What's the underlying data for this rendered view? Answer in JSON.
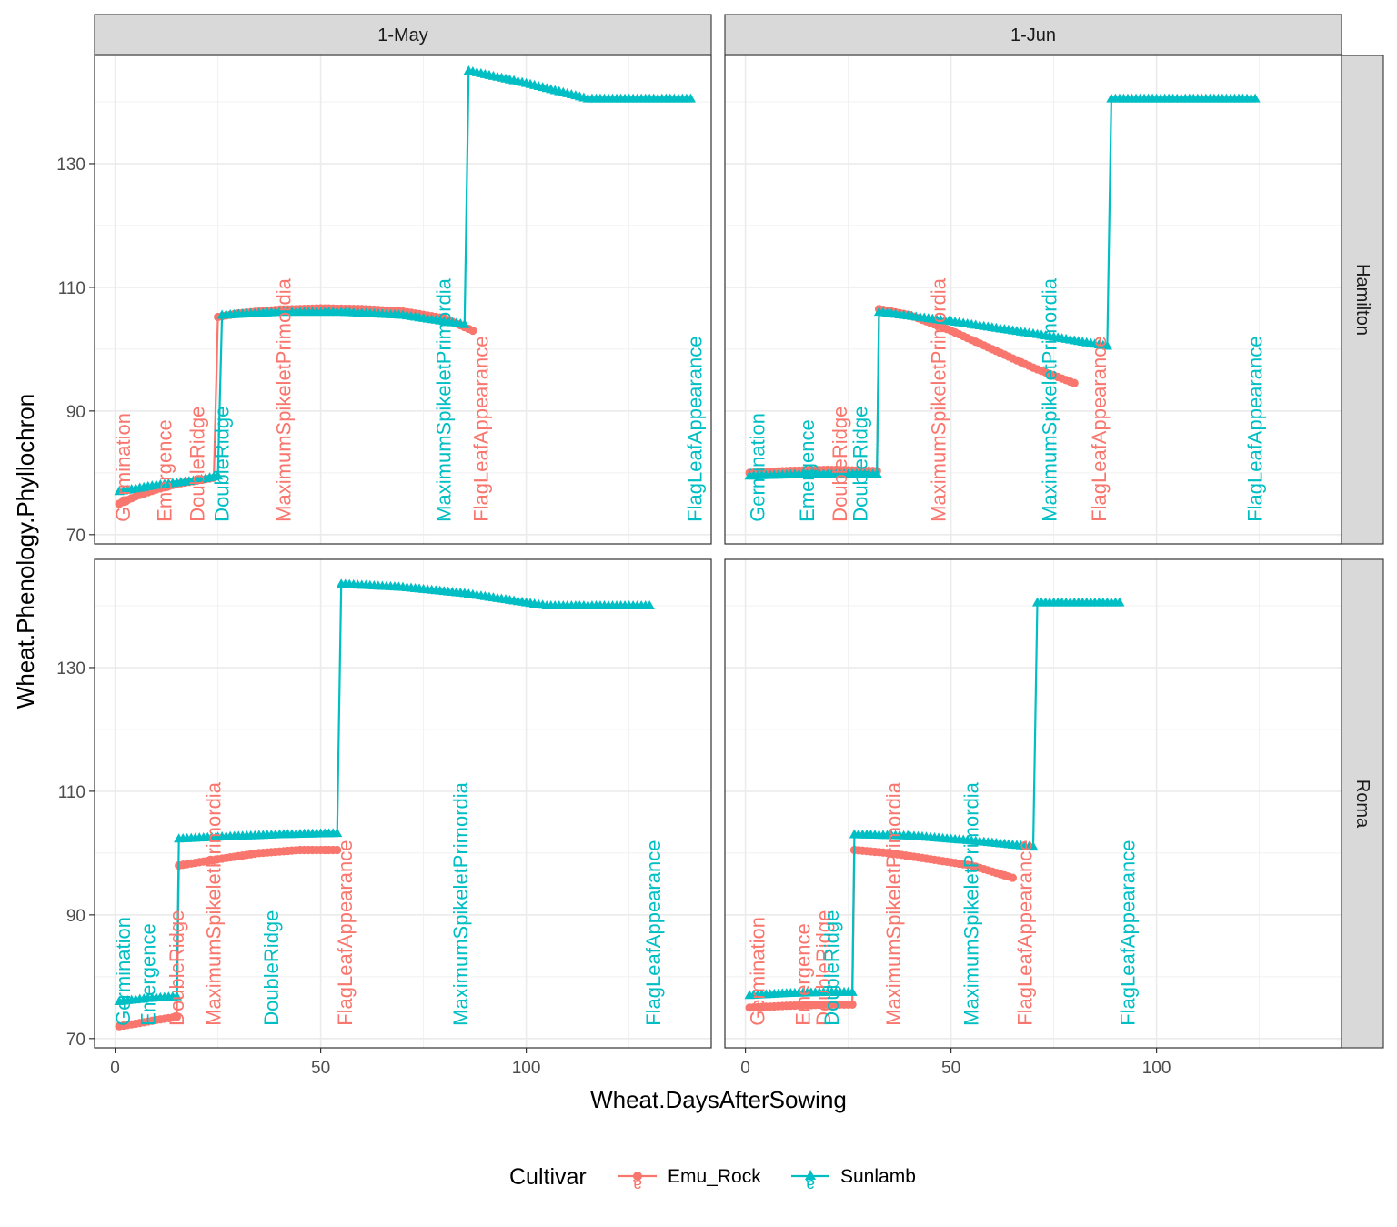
{
  "chart_data": {
    "type": "line",
    "facet_cols": [
      "1-May",
      "1-Jun"
    ],
    "facet_rows": [
      "Hamilton",
      "Roma"
    ],
    "xlabel": "Wheat.DaysAfterSowing",
    "ylabel": "Wheat.Phenology.Phyllochron",
    "xlim": [
      -5,
      145
    ],
    "ylim": [
      68.5,
      147.5
    ],
    "xticks": [
      0,
      50,
      100
    ],
    "yticks": [
      70,
      90,
      110,
      130
    ],
    "legend": {
      "title": "Cultivar",
      "position": "bottom",
      "keys": [
        {
          "name": "Emu_Rock",
          "color": "#F8766D",
          "marker": "circle",
          "glyph": "a"
        },
        {
          "name": "Sunlamb",
          "color": "#00BFC4",
          "marker": "triangle",
          "glyph": "a"
        }
      ]
    },
    "panels": [
      {
        "sow": "1-May",
        "site": "Hamilton",
        "series": [
          {
            "name": "Emu_Rock",
            "points": [
              [
                1,
                75
              ],
              [
                5,
                76.2
              ],
              [
                10,
                77.3
              ],
              [
                15,
                78.2
              ],
              [
                24,
                79.2
              ],
              [
                25,
                105.2
              ],
              [
                30,
                105.8
              ],
              [
                40,
                106.4
              ],
              [
                50,
                106.6
              ],
              [
                60,
                106.5
              ],
              [
                70,
                106.1
              ],
              [
                80,
                105
              ],
              [
                87,
                103
              ]
            ]
          },
          {
            "name": "Sunlamb",
            "points": [
              [
                1,
                77
              ],
              [
                10,
                78
              ],
              [
                20,
                78.8
              ],
              [
                25,
                79.5
              ],
              [
                26,
                105.5
              ],
              [
                40,
                106
              ],
              [
                55,
                106
              ],
              [
                70,
                105.5
              ],
              [
                85,
                104
              ],
              [
                86,
                145
              ],
              [
                100,
                143
              ],
              [
                115,
                140.5
              ],
              [
                140,
                140.5
              ]
            ]
          }
        ],
        "annotations": [
          {
            "label": "Germination",
            "x": 2,
            "cultivar": "Emu_Rock"
          },
          {
            "label": "Emergence",
            "x": 12,
            "cultivar": "Emu_Rock"
          },
          {
            "label": "DoubleRidge",
            "x": 20,
            "cultivar": "Emu_Rock"
          },
          {
            "label": "DoubleRidge",
            "x": 26,
            "cultivar": "Sunlamb"
          },
          {
            "label": "MaximumSpikeletPrimordia",
            "x": 41,
            "cultivar": "Emu_Rock"
          },
          {
            "label": "MaximumSpikeletPrimordia",
            "x": 80,
            "cultivar": "Sunlamb"
          },
          {
            "label": "FlagLeafAppearance",
            "x": 89,
            "cultivar": "Emu_Rock"
          },
          {
            "label": "FlagLeafAppearance",
            "x": 141,
            "cultivar": "Sunlamb"
          }
        ]
      },
      {
        "sow": "1-Jun",
        "site": "Hamilton",
        "series": [
          {
            "name": "Emu_Rock",
            "points": [
              [
                1,
                80
              ],
              [
                10,
                80.3
              ],
              [
                20,
                80.5
              ],
              [
                32,
                80.3
              ],
              [
                32.5,
                106.5
              ],
              [
                40,
                105.5
              ],
              [
                50,
                103
              ],
              [
                60,
                100
              ],
              [
                70,
                97
              ],
              [
                80,
                94.5
              ]
            ]
          },
          {
            "name": "Sunlamb",
            "points": [
              [
                1,
                79.5
              ],
              [
                15,
                79.8
              ],
              [
                32,
                79.8
              ],
              [
                32.5,
                106
              ],
              [
                50,
                104.5
              ],
              [
                70,
                102.5
              ],
              [
                88,
                100.5
              ],
              [
                89,
                140.5
              ],
              [
                105,
                140.5
              ],
              [
                124,
                140.5
              ]
            ]
          }
        ],
        "annotations": [
          {
            "label": "Germination",
            "x": 3,
            "cultivar": "Sunlamb"
          },
          {
            "label": "Emergence",
            "x": 15,
            "cultivar": "Sunlamb"
          },
          {
            "label": "DoubleRidge",
            "x": 23,
            "cultivar": "Emu_Rock"
          },
          {
            "label": "DoubleRidge",
            "x": 28,
            "cultivar": "Sunlamb"
          },
          {
            "label": "MaximumSpikeletPrimordia",
            "x": 47,
            "cultivar": "Emu_Rock"
          },
          {
            "label": "MaximumSpikeletPrimordia",
            "x": 74,
            "cultivar": "Sunlamb"
          },
          {
            "label": "FlagLeafAppearance",
            "x": 86,
            "cultivar": "Emu_Rock"
          },
          {
            "label": "FlagLeafAppearance",
            "x": 124,
            "cultivar": "Sunlamb"
          }
        ]
      },
      {
        "sow": "1-May",
        "site": "Roma",
        "series": [
          {
            "name": "Emu_Rock",
            "points": [
              [
                1,
                72
              ],
              [
                5,
                72.4
              ],
              [
                10,
                73
              ],
              [
                15,
                73.5
              ],
              [
                15.5,
                98
              ],
              [
                25,
                99
              ],
              [
                35,
                100
              ],
              [
                45,
                100.5
              ],
              [
                54,
                100.5
              ]
            ]
          },
          {
            "name": "Sunlamb",
            "points": [
              [
                1,
                76
              ],
              [
                8,
                76.5
              ],
              [
                15,
                76.8
              ],
              [
                15.5,
                102.3
              ],
              [
                25,
                102.6
              ],
              [
                40,
                103
              ],
              [
                54,
                103.2
              ],
              [
                55,
                143.5
              ],
              [
                70,
                143
              ],
              [
                85,
                142
              ],
              [
                105,
                140
              ],
              [
                130,
                140
              ]
            ]
          }
        ],
        "annotations": [
          {
            "label": "Germination",
            "x": 2,
            "cultivar": "Sunlamb"
          },
          {
            "label": "Emergence",
            "x": 8,
            "cultivar": "Sunlamb"
          },
          {
            "label": "DoubleRidge",
            "x": 15,
            "cultivar": "Emu_Rock"
          },
          {
            "label": "MaximumSpikeletPrimordia",
            "x": 24,
            "cultivar": "Emu_Rock"
          },
          {
            "label": "DoubleRidge",
            "x": 38,
            "cultivar": "Sunlamb"
          },
          {
            "label": "FlagLeafAppearance",
            "x": 56,
            "cultivar": "Emu_Rock"
          },
          {
            "label": "MaximumSpikeletPrimordia",
            "x": 84,
            "cultivar": "Sunlamb"
          },
          {
            "label": "FlagLeafAppearance",
            "x": 131,
            "cultivar": "Sunlamb"
          }
        ]
      },
      {
        "sow": "1-Jun",
        "site": "Roma",
        "series": [
          {
            "name": "Emu_Rock",
            "points": [
              [
                1,
                75
              ],
              [
                10,
                75.3
              ],
              [
                20,
                75.5
              ],
              [
                26,
                75.5
              ],
              [
                26.5,
                100.5
              ],
              [
                35,
                100
              ],
              [
                45,
                99
              ],
              [
                55,
                98
              ],
              [
                65,
                96
              ]
            ]
          },
          {
            "name": "Sunlamb",
            "points": [
              [
                1,
                77
              ],
              [
                10,
                77.3
              ],
              [
                20,
                77.5
              ],
              [
                26,
                77.5
              ],
              [
                26.5,
                103
              ],
              [
                40,
                102.8
              ],
              [
                55,
                102
              ],
              [
                70,
                101
              ],
              [
                71,
                140.5
              ],
              [
                80,
                140.5
              ],
              [
                91,
                140.5
              ]
            ]
          }
        ],
        "annotations": [
          {
            "label": "Germination",
            "x": 3,
            "cultivar": "Emu_Rock"
          },
          {
            "label": "Emergence",
            "x": 14,
            "cultivar": "Emu_Rock"
          },
          {
            "label": "DoubleRidge",
            "x": 19,
            "cultivar": "Emu_Rock"
          },
          {
            "label": "DoubleRidge",
            "x": 21,
            "cultivar": "Sunlamb"
          },
          {
            "label": "MaximumSpikeletPrimordia",
            "x": 36,
            "cultivar": "Emu_Rock"
          },
          {
            "label": "MaximumSpikeletPrimordia",
            "x": 55,
            "cultivar": "Sunlamb"
          },
          {
            "label": "FlagLeafAppearance",
            "x": 68,
            "cultivar": "Emu_Rock"
          },
          {
            "label": "FlagLeafAppearance",
            "x": 93,
            "cultivar": "Sunlamb"
          }
        ]
      }
    ]
  }
}
